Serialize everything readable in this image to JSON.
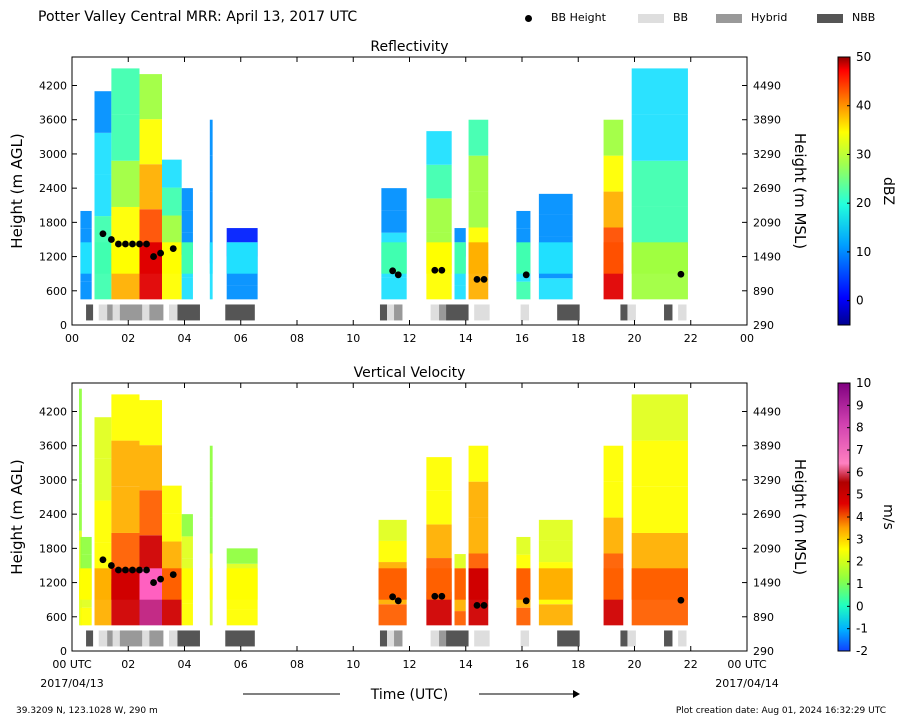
{
  "title": "Potter Valley Central MRR:  April 13, 2017 UTC",
  "legend": [
    {
      "label": "BB Height",
      "kind": "dot",
      "color": "#000000"
    },
    {
      "label": "BB",
      "kind": "swatch",
      "color": "#dedede"
    },
    {
      "label": "Hybrid",
      "kind": "swatch",
      "color": "#999999"
    },
    {
      "label": "NBB",
      "kind": "swatch",
      "color": "#555555"
    }
  ],
  "footer": {
    "location": "39.3209 N, 123.1028 W, 290 m",
    "created": "Plot creation date: Aug 01, 2024 16:32:29 UTC"
  },
  "chart_data": [
    {
      "type": "heatmap",
      "title": "Reflectivity",
      "ylabel": "Height (m AGL)",
      "ylabel_right": "Height (m MSL)",
      "x_ticks": [
        "00",
        "02",
        "04",
        "06",
        "08",
        "10",
        "12",
        "14",
        "16",
        "18",
        "20",
        "22",
        "00"
      ],
      "x_range": [
        0,
        24
      ],
      "y_ticks": [
        0,
        600,
        1200,
        1800,
        2400,
        3000,
        3600,
        4200
      ],
      "y_range": [
        0,
        4700
      ],
      "y_ticks_right": [
        290,
        890,
        1490,
        2090,
        2690,
        3290,
        3890,
        4490
      ],
      "colorbar": {
        "label": "dBZ",
        "ticks": [
          "0",
          "10",
          "20",
          "30",
          "40",
          "50"
        ],
        "range": [
          -5,
          50
        ]
      },
      "echo_columns": [
        {
          "start": 0.3,
          "end": 0.7,
          "top": 2000,
          "intensity": 0.12
        },
        {
          "start": 0.8,
          "end": 1.4,
          "top": 4100,
          "intensity": 0.3
        },
        {
          "start": 1.4,
          "end": 2.4,
          "top": 4500,
          "intensity": 0.55
        },
        {
          "start": 2.4,
          "end": 3.2,
          "top": 4400,
          "intensity": 0.85
        },
        {
          "start": 3.2,
          "end": 3.9,
          "top": 2900,
          "intensity": 0.5
        },
        {
          "start": 3.9,
          "end": 4.3,
          "top": 2400,
          "intensity": 0.2
        },
        {
          "start": 4.9,
          "end": 5.0,
          "top": 3600,
          "intensity": 0.15
        },
        {
          "start": 5.5,
          "end": 6.6,
          "top": 1700,
          "intensity": 0.08
        },
        {
          "start": 11.0,
          "end": 11.9,
          "top": 2400,
          "intensity": 0.22
        },
        {
          "start": 12.6,
          "end": 13.5,
          "top": 3400,
          "intensity": 0.5
        },
        {
          "start": 13.6,
          "end": 14.0,
          "top": 1700,
          "intensity": 0.22
        },
        {
          "start": 14.1,
          "end": 14.8,
          "top": 3600,
          "intensity": 0.6
        },
        {
          "start": 15.8,
          "end": 16.3,
          "top": 2000,
          "intensity": 0.25
        },
        {
          "start": 16.6,
          "end": 17.8,
          "top": 2300,
          "intensity": 0.15
        },
        {
          "start": 18.9,
          "end": 19.6,
          "top": 3600,
          "intensity": 0.78
        },
        {
          "start": 19.9,
          "end": 21.9,
          "top": 4500,
          "intensity": 0.35
        }
      ],
      "bb_height_points": [
        {
          "x": 1.1,
          "y": 1600
        },
        {
          "x": 1.4,
          "y": 1500
        },
        {
          "x": 1.65,
          "y": 1420
        },
        {
          "x": 1.9,
          "y": 1420
        },
        {
          "x": 2.15,
          "y": 1420
        },
        {
          "x": 2.4,
          "y": 1420
        },
        {
          "x": 2.65,
          "y": 1420
        },
        {
          "x": 2.9,
          "y": 1200
        },
        {
          "x": 3.15,
          "y": 1260
        },
        {
          "x": 3.6,
          "y": 1340
        },
        {
          "x": 11.4,
          "y": 950
        },
        {
          "x": 11.6,
          "y": 880
        },
        {
          "x": 12.9,
          "y": 960
        },
        {
          "x": 13.15,
          "y": 960
        },
        {
          "x": 14.4,
          "y": 800
        },
        {
          "x": 14.65,
          "y": 800
        },
        {
          "x": 16.15,
          "y": 880
        },
        {
          "x": 21.65,
          "y": 890
        }
      ],
      "bb_type_segments": [
        {
          "start": 0.5,
          "end": 0.75,
          "type": "NBB"
        },
        {
          "start": 0.95,
          "end": 1.25,
          "type": "BB"
        },
        {
          "start": 1.25,
          "end": 1.45,
          "type": "Hybrid"
        },
        {
          "start": 1.45,
          "end": 1.7,
          "type": "BB"
        },
        {
          "start": 1.7,
          "end": 2.5,
          "type": "Hybrid"
        },
        {
          "start": 2.5,
          "end": 2.75,
          "type": "BB"
        },
        {
          "start": 2.75,
          "end": 3.25,
          "type": "Hybrid"
        },
        {
          "start": 3.45,
          "end": 3.75,
          "type": "BB"
        },
        {
          "start": 3.75,
          "end": 4.55,
          "type": "NBB"
        },
        {
          "start": 5.45,
          "end": 6.5,
          "type": "NBB"
        },
        {
          "start": 10.95,
          "end": 11.2,
          "type": "NBB"
        },
        {
          "start": 11.2,
          "end": 11.45,
          "type": "BB"
        },
        {
          "start": 11.45,
          "end": 11.75,
          "type": "Hybrid"
        },
        {
          "start": 12.75,
          "end": 13.05,
          "type": "BB"
        },
        {
          "start": 13.05,
          "end": 13.3,
          "type": "Hybrid"
        },
        {
          "start": 13.3,
          "end": 14.1,
          "type": "NBB"
        },
        {
          "start": 14.3,
          "end": 14.85,
          "type": "BB"
        },
        {
          "start": 15.95,
          "end": 16.25,
          "type": "BB"
        },
        {
          "start": 17.25,
          "end": 18.05,
          "type": "NBB"
        },
        {
          "start": 19.5,
          "end": 19.75,
          "type": "NBB"
        },
        {
          "start": 19.75,
          "end": 20.05,
          "type": "BB"
        },
        {
          "start": 21.05,
          "end": 21.35,
          "type": "NBB"
        },
        {
          "start": 21.55,
          "end": 21.85,
          "type": "BB"
        }
      ]
    },
    {
      "type": "heatmap",
      "title": "Vertical Velocity",
      "xlabel": "Time (UTC)",
      "ylabel": "Height (m AGL)",
      "ylabel_right": "Height (m MSL)",
      "x_ticks": [
        "00 UTC",
        "02",
        "04",
        "06",
        "08",
        "10",
        "12",
        "14",
        "16",
        "18",
        "20",
        "22",
        "00 UTC"
      ],
      "x_date_left": "2017/04/13",
      "x_date_right": "2017/04/14",
      "x_range": [
        0,
        24
      ],
      "y_ticks": [
        0,
        600,
        1200,
        1800,
        2400,
        3000,
        3600,
        4200
      ],
      "y_range": [
        0,
        4700
      ],
      "y_ticks_right": [
        290,
        890,
        1490,
        2090,
        2690,
        3290,
        3890,
        4490
      ],
      "colorbar": {
        "label": "m/s",
        "ticks": [
          "-2",
          "-1",
          "0",
          "1",
          "2",
          "3",
          "4",
          "5",
          "6",
          "7",
          "8",
          "9",
          "10"
        ],
        "range": [
          -2,
          10
        ]
      },
      "echo_columns": [
        {
          "start": 0.25,
          "end": 0.35,
          "top": 4600,
          "intensity": 0.2
        },
        {
          "start": 0.3,
          "end": 0.7,
          "top": 2000,
          "intensity": 0.25
        },
        {
          "start": 0.8,
          "end": 1.4,
          "top": 4100,
          "intensity": 0.4
        },
        {
          "start": 1.4,
          "end": 2.4,
          "top": 4500,
          "intensity": 0.6
        },
        {
          "start": 2.4,
          "end": 3.2,
          "top": 4400,
          "intensity": 0.75
        },
        {
          "start": 3.2,
          "end": 3.9,
          "top": 2900,
          "intensity": 0.55
        },
        {
          "start": 3.9,
          "end": 4.3,
          "top": 2400,
          "intensity": 0.3
        },
        {
          "start": 4.9,
          "end": 5.0,
          "top": 3600,
          "intensity": 0.2
        },
        {
          "start": 5.5,
          "end": 6.6,
          "top": 1800,
          "intensity": 0.3
        },
        {
          "start": 10.9,
          "end": 11.9,
          "top": 2300,
          "intensity": 0.5
        },
        {
          "start": 12.6,
          "end": 13.5,
          "top": 3400,
          "intensity": 0.55
        },
        {
          "start": 13.6,
          "end": 14.0,
          "top": 1700,
          "intensity": 0.45
        },
        {
          "start": 14.1,
          "end": 14.8,
          "top": 3600,
          "intensity": 0.6
        },
        {
          "start": 15.8,
          "end": 16.3,
          "top": 2000,
          "intensity": 0.5
        },
        {
          "start": 16.6,
          "end": 17.8,
          "top": 2300,
          "intensity": 0.4
        },
        {
          "start": 18.9,
          "end": 19.6,
          "top": 3600,
          "intensity": 0.55
        },
        {
          "start": 19.9,
          "end": 21.9,
          "top": 4500,
          "intensity": 0.45
        }
      ],
      "bb_height_points": [
        {
          "x": 1.1,
          "y": 1600
        },
        {
          "x": 1.4,
          "y": 1500
        },
        {
          "x": 1.65,
          "y": 1420
        },
        {
          "x": 1.9,
          "y": 1420
        },
        {
          "x": 2.15,
          "y": 1420
        },
        {
          "x": 2.4,
          "y": 1420
        },
        {
          "x": 2.65,
          "y": 1420
        },
        {
          "x": 2.9,
          "y": 1200
        },
        {
          "x": 3.15,
          "y": 1260
        },
        {
          "x": 3.6,
          "y": 1340
        },
        {
          "x": 11.4,
          "y": 950
        },
        {
          "x": 11.6,
          "y": 880
        },
        {
          "x": 12.9,
          "y": 960
        },
        {
          "x": 13.15,
          "y": 960
        },
        {
          "x": 14.4,
          "y": 800
        },
        {
          "x": 14.65,
          "y": 800
        },
        {
          "x": 16.15,
          "y": 880
        },
        {
          "x": 21.65,
          "y": 890
        }
      ],
      "bb_type_segments": [
        {
          "start": 0.5,
          "end": 0.75,
          "type": "NBB"
        },
        {
          "start": 0.95,
          "end": 1.25,
          "type": "BB"
        },
        {
          "start": 1.25,
          "end": 1.45,
          "type": "Hybrid"
        },
        {
          "start": 1.45,
          "end": 1.7,
          "type": "BB"
        },
        {
          "start": 1.7,
          "end": 2.5,
          "type": "Hybrid"
        },
        {
          "start": 2.5,
          "end": 2.75,
          "type": "BB"
        },
        {
          "start": 2.75,
          "end": 3.25,
          "type": "Hybrid"
        },
        {
          "start": 3.45,
          "end": 3.75,
          "type": "BB"
        },
        {
          "start": 3.75,
          "end": 4.55,
          "type": "NBB"
        },
        {
          "start": 5.45,
          "end": 6.5,
          "type": "NBB"
        },
        {
          "start": 10.95,
          "end": 11.2,
          "type": "NBB"
        },
        {
          "start": 11.2,
          "end": 11.45,
          "type": "BB"
        },
        {
          "start": 11.45,
          "end": 11.75,
          "type": "Hybrid"
        },
        {
          "start": 12.75,
          "end": 13.05,
          "type": "BB"
        },
        {
          "start": 13.05,
          "end": 13.3,
          "type": "Hybrid"
        },
        {
          "start": 13.3,
          "end": 14.1,
          "type": "NBB"
        },
        {
          "start": 14.3,
          "end": 14.85,
          "type": "BB"
        },
        {
          "start": 15.95,
          "end": 16.25,
          "type": "BB"
        },
        {
          "start": 17.25,
          "end": 18.05,
          "type": "NBB"
        },
        {
          "start": 19.5,
          "end": 19.75,
          "type": "NBB"
        },
        {
          "start": 19.75,
          "end": 20.05,
          "type": "BB"
        },
        {
          "start": 21.05,
          "end": 21.35,
          "type": "NBB"
        },
        {
          "start": 21.55,
          "end": 21.85,
          "type": "BB"
        }
      ]
    }
  ]
}
